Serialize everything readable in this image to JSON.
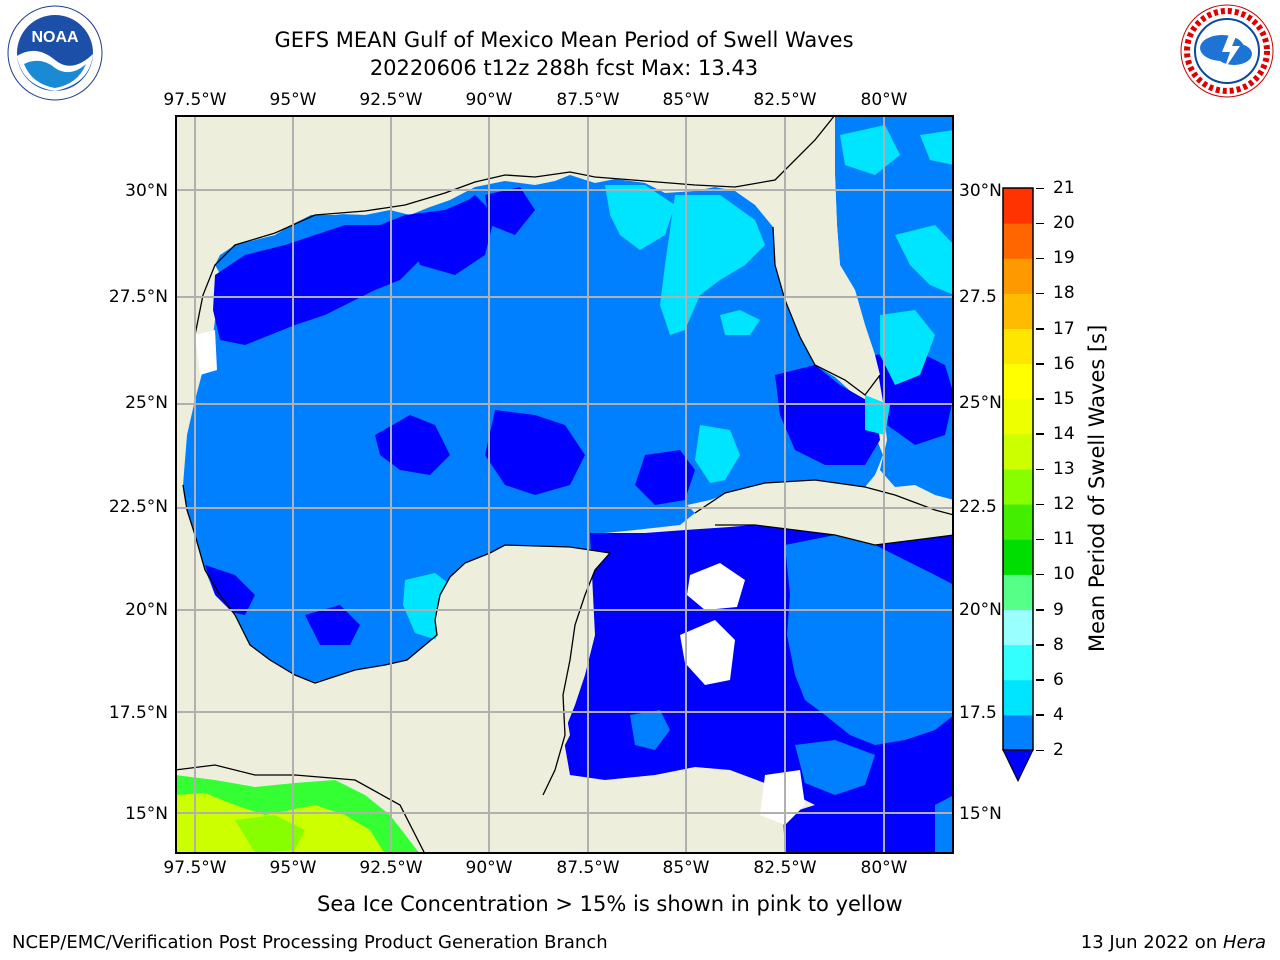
{
  "header": {
    "title_line1": "GEFS MEAN Gulf of Mexico Mean Period of Swell Waves",
    "title_line2": "20220606 t12z 288h fcst   Max: 13.43"
  },
  "logos": {
    "left": "NOAA",
    "left_ring": "NATIONAL OCEANIC AND ATMOSPHERIC ADMINISTRATION · U.S. DEPARTMENT OF COMMERCE",
    "right_ring": "NATIONAL WEATHER SERVICE"
  },
  "map": {
    "lon_labels": [
      "97.5°W",
      "95°W",
      "92.5°W",
      "90°W",
      "87.5°W",
      "85°W",
      "82.5°W",
      "80°W"
    ],
    "lat_labels_left": [
      "30°N",
      "27.5°N",
      "25°N",
      "22.5°N",
      "20°N",
      "17.5°N",
      "15°N"
    ],
    "lat_labels_right": [
      "30°N",
      "27.5",
      "25°N",
      "22.5",
      "20°N",
      "17.5",
      "15°N"
    ],
    "colors": {
      "land": "#eeeedc",
      "ocean_base": "#0080ff",
      "ocean_dark": "#0000ff",
      "ocean_light": "#00e5ff",
      "green_bright": "#33ff33",
      "green_yellow": "#ccff00",
      "grid": "#b0b0b0",
      "coast": "#000000"
    }
  },
  "colorbar": {
    "label": "Mean Period of Swell Waves [s]",
    "ticks": [
      "2",
      "4",
      "6",
      "8",
      "9",
      "10",
      "11",
      "12",
      "13",
      "14",
      "15",
      "16",
      "17",
      "18",
      "19",
      "20",
      "21"
    ],
    "colors": [
      "#0080ff",
      "#00e5ff",
      "#33ffff",
      "#99ffff",
      "#55ff88",
      "#00dd00",
      "#44ee00",
      "#88ff00",
      "#ccff00",
      "#eeff00",
      "#ffff00",
      "#ffe600",
      "#ffbb00",
      "#ff9900",
      "#ff6600",
      "#ff3300",
      "#ff0000"
    ],
    "extend_color": "#0000ff"
  },
  "subnote": "Sea Ice Concentration > 15% is shown in pink to yellow",
  "footer": {
    "left": "NCEP/EMC/Verification Post Processing Product Generation Branch",
    "right_date": "13 Jun 2022 on ",
    "right_host": "Hera"
  }
}
